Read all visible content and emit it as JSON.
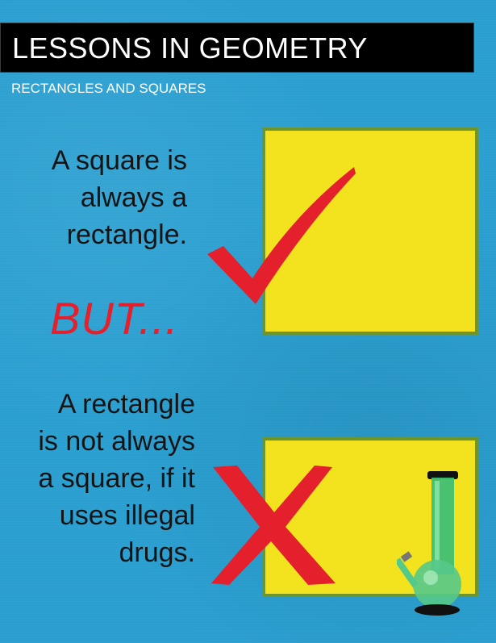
{
  "header": {
    "title": "LESSONS IN GEOMETRY",
    "subtitle": "RECTANGLES AND SQUARES"
  },
  "statement1": {
    "lines": [
      "A square is",
      "always a",
      "rectangle."
    ]
  },
  "connector": "BUT...",
  "statement2": {
    "lines": [
      "A rectangle",
      "is not always",
      "a square, if it",
      "uses illegal",
      "drugs."
    ]
  },
  "colors": {
    "background": "#2a9fd0",
    "square_fill": "#f3e31e",
    "square_border": "#6c9430",
    "mark_red": "#e3202c",
    "title_bar": "#000000"
  },
  "icons": {
    "check": "red-checkmark-icon",
    "cross": "red-x-icon",
    "bong": "green-bong-icon"
  }
}
